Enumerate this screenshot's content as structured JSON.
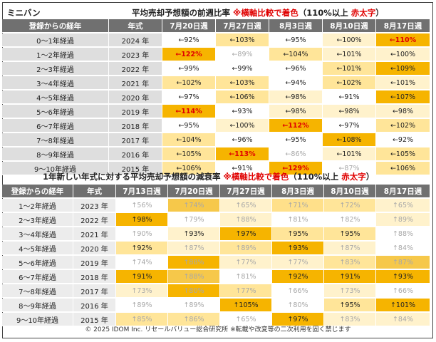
{
  "table1": {
    "corner": "ミニバン",
    "title": "平均売却予想額の前週比率",
    "note_prefix": "※横軸比較で着色",
    "note_mid": "（110%以上",
    "note_red": "赤太字",
    "note_end": "）",
    "headers": [
      "登録からの経年",
      "年式",
      "7月20日週",
      "7月27日週",
      "8月3日週",
      "8月10日週",
      "8月17日週"
    ],
    "rows": [
      {
        "age": "0～1年経過",
        "year": "2024 年",
        "cells": [
          {
            "t": "←92%",
            "bg": "#ffffff",
            "s": "n"
          },
          {
            "t": "←103%",
            "bg": "#ffe599",
            "s": "n"
          },
          {
            "t": "←95%",
            "bg": "#ffffff",
            "s": "n"
          },
          {
            "t": "←100%",
            "bg": "#fff2cc",
            "s": "n"
          },
          {
            "t": "←110%",
            "bg": "#f6b400",
            "s": "r"
          }
        ]
      },
      {
        "age": "1～2年経過",
        "year": "2023 年",
        "cells": [
          {
            "t": "←122%",
            "bg": "#f6b400",
            "s": "r"
          },
          {
            "t": "←89%",
            "bg": "#ffffff",
            "s": "g"
          },
          {
            "t": "←104%",
            "bg": "#ffe599",
            "s": "n"
          },
          {
            "t": "←101%",
            "bg": "#fff2cc",
            "s": "n"
          },
          {
            "t": "←100%",
            "bg": "#fff2cc",
            "s": "n"
          }
        ]
      },
      {
        "age": "2～3年経過",
        "year": "2022 年",
        "cells": [
          {
            "t": "←99%",
            "bg": "#ffffff",
            "s": "n"
          },
          {
            "t": "←99%",
            "bg": "#ffffff",
            "s": "n"
          },
          {
            "t": "←96%",
            "bg": "#ffffff",
            "s": "n"
          },
          {
            "t": "←101%",
            "bg": "#ffe599",
            "s": "n"
          },
          {
            "t": "←109%",
            "bg": "#f6b400",
            "s": "n"
          }
        ]
      },
      {
        "age": "3～4年経過",
        "year": "2021 年",
        "cells": [
          {
            "t": "←102%",
            "bg": "#ffe599",
            "s": "n"
          },
          {
            "t": "←103%",
            "bg": "#ffe599",
            "s": "n"
          },
          {
            "t": "←94%",
            "bg": "#ffffff",
            "s": "n"
          },
          {
            "t": "←102%",
            "bg": "#ffe599",
            "s": "n"
          },
          {
            "t": "←101%",
            "bg": "#fff2cc",
            "s": "n"
          }
        ]
      },
      {
        "age": "4～5年経過",
        "year": "2020 年",
        "cells": [
          {
            "t": "←97%",
            "bg": "#ffffff",
            "s": "n"
          },
          {
            "t": "←106%",
            "bg": "#ffe599",
            "s": "n"
          },
          {
            "t": "←98%",
            "bg": "#fff2cc",
            "s": "n"
          },
          {
            "t": "←91%",
            "bg": "#ffffff",
            "s": "n"
          },
          {
            "t": "←107%",
            "bg": "#f6b400",
            "s": "n"
          }
        ]
      },
      {
        "age": "5～6年経過",
        "year": "2019 年",
        "cells": [
          {
            "t": "←114%",
            "bg": "#f6b400",
            "s": "r"
          },
          {
            "t": "←93%",
            "bg": "#ffffff",
            "s": "n"
          },
          {
            "t": "←98%",
            "bg": "#fff2cc",
            "s": "n"
          },
          {
            "t": "←98%",
            "bg": "#fff2cc",
            "s": "n"
          },
          {
            "t": "←98%",
            "bg": "#fff2cc",
            "s": "n"
          }
        ]
      },
      {
        "age": "6～7年経過",
        "year": "2018 年",
        "cells": [
          {
            "t": "←95%",
            "bg": "#ffffff",
            "s": "n"
          },
          {
            "t": "←100%",
            "bg": "#fff2cc",
            "s": "n"
          },
          {
            "t": "←112%",
            "bg": "#f6b400",
            "s": "r"
          },
          {
            "t": "←97%",
            "bg": "#ffffff",
            "s": "n"
          },
          {
            "t": "←102%",
            "bg": "#ffe599",
            "s": "n"
          }
        ]
      },
      {
        "age": "7～8年経過",
        "year": "2017 年",
        "cells": [
          {
            "t": "←104%",
            "bg": "#ffe599",
            "s": "n"
          },
          {
            "t": "←96%",
            "bg": "#ffffff",
            "s": "n"
          },
          {
            "t": "←95%",
            "bg": "#ffffff",
            "s": "n"
          },
          {
            "t": "←108%",
            "bg": "#f6b400",
            "s": "n"
          },
          {
            "t": "←92%",
            "bg": "#ffffff",
            "s": "n"
          }
        ]
      },
      {
        "age": "8～9年経過",
        "year": "2016 年",
        "cells": [
          {
            "t": "←105%",
            "bg": "#ffe599",
            "s": "n"
          },
          {
            "t": "←113%",
            "bg": "#f6b400",
            "s": "r"
          },
          {
            "t": "←86%",
            "bg": "#ffffff",
            "s": "g"
          },
          {
            "t": "←101%",
            "bg": "#fff2cc",
            "s": "n"
          },
          {
            "t": "←105%",
            "bg": "#ffe599",
            "s": "n"
          }
        ]
      },
      {
        "age": "9～10年経過",
        "year": "2015 年",
        "cells": [
          {
            "t": "←106%",
            "bg": "#ffe599",
            "s": "n"
          },
          {
            "t": "←91%",
            "bg": "#ffffff",
            "s": "n"
          },
          {
            "t": "←129%",
            "bg": "#f6b400",
            "s": "r"
          },
          {
            "t": "←87%",
            "bg": "#ffffff",
            "s": "g"
          },
          {
            "t": "←106%",
            "bg": "#ffe599",
            "s": "n"
          }
        ]
      }
    ]
  },
  "table2": {
    "title": "1年新しい年式に対する平均売却予想額の減衰率",
    "note_prefix": "※横軸比較で着色",
    "note_mid": "（110%以上",
    "note_red": "赤太字",
    "note_end": "）",
    "headers": [
      "登録からの経年",
      "年式",
      "7月13日週",
      "7月20日週",
      "7月27日週",
      "8月3日週",
      "8月10日週",
      "8月17日週"
    ],
    "rows": [
      {
        "age": "1～2年経過",
        "year": "2023 年",
        "cells": [
          {
            "t": "↑56%",
            "bg": "#ffffff",
            "s": "g"
          },
          {
            "t": "↑74%",
            "bg": "#f6c84a",
            "s": "g"
          },
          {
            "t": "↑65%",
            "bg": "#fff2cc",
            "s": "g"
          },
          {
            "t": "↑71%",
            "bg": "#ffe08a",
            "s": "g"
          },
          {
            "t": "↑72%",
            "bg": "#ffe599",
            "s": "g"
          },
          {
            "t": "↑65%",
            "bg": "#fff2cc",
            "s": "g"
          }
        ]
      },
      {
        "age": "2～3年経過",
        "year": "2022 年",
        "cells": [
          {
            "t": "↑98%",
            "bg": "#f6b400",
            "s": "n"
          },
          {
            "t": "↑79%",
            "bg": "#ffffff",
            "s": "g"
          },
          {
            "t": "↑88%",
            "bg": "#fff2cc",
            "s": "g"
          },
          {
            "t": "↑81%",
            "bg": "#ffffff",
            "s": "g"
          },
          {
            "t": "↑82%",
            "bg": "#ffffff",
            "s": "g"
          },
          {
            "t": "↑89%",
            "bg": "#fff2cc",
            "s": "g"
          }
        ]
      },
      {
        "age": "3～4年経過",
        "year": "2021 年",
        "cells": [
          {
            "t": "↑90%",
            "bg": "#ffffff",
            "s": "g"
          },
          {
            "t": "↑93%",
            "bg": "#fff2cc",
            "s": "n"
          },
          {
            "t": "↑97%",
            "bg": "#f6b400",
            "s": "n"
          },
          {
            "t": "↑95%",
            "bg": "#ffe599",
            "s": "n"
          },
          {
            "t": "↑95%",
            "bg": "#ffe599",
            "s": "n"
          },
          {
            "t": "↑88%",
            "bg": "#ffffff",
            "s": "g"
          }
        ]
      },
      {
        "age": "4～5年経過",
        "year": "2020 年",
        "cells": [
          {
            "t": "↑92%",
            "bg": "#ffe599",
            "s": "n"
          },
          {
            "t": "↑87%",
            "bg": "#fff2cc",
            "s": "g"
          },
          {
            "t": "↑89%",
            "bg": "#ffe599",
            "s": "g"
          },
          {
            "t": "↑93%",
            "bg": "#f6b400",
            "s": "n"
          },
          {
            "t": "↑87%",
            "bg": "#fff2cc",
            "s": "g"
          },
          {
            "t": "↑84%",
            "bg": "#ffffff",
            "s": "g"
          }
        ]
      },
      {
        "age": "5～6年経過",
        "year": "2019 年",
        "cells": [
          {
            "t": "↑74%",
            "bg": "#ffffff",
            "s": "g"
          },
          {
            "t": "↑88%",
            "bg": "#f6b400",
            "s": "g"
          },
          {
            "t": "↑77%",
            "bg": "#fff2cc",
            "s": "g"
          },
          {
            "t": "↑77%",
            "bg": "#fff2cc",
            "s": "g"
          },
          {
            "t": "↑83%",
            "bg": "#ffe599",
            "s": "g"
          },
          {
            "t": "↑87%",
            "bg": "#f6c84a",
            "s": "g"
          }
        ]
      },
      {
        "age": "6～7年経過",
        "year": "2018 年",
        "cells": [
          {
            "t": "↑91%",
            "bg": "#f6b400",
            "s": "n"
          },
          {
            "t": "↑88%",
            "bg": "#f6c84a",
            "s": "g"
          },
          {
            "t": "↑81%",
            "bg": "#ffffff",
            "s": "g"
          },
          {
            "t": "↑92%",
            "bg": "#f6b400",
            "s": "n"
          },
          {
            "t": "↑91%",
            "bg": "#f6b400",
            "s": "n"
          },
          {
            "t": "↑93%",
            "bg": "#f6b400",
            "s": "n"
          }
        ]
      },
      {
        "age": "7～8年経過",
        "year": "2017 年",
        "cells": [
          {
            "t": "↑73%",
            "bg": "#fff2cc",
            "s": "g"
          },
          {
            "t": "↑80%",
            "bg": "#f6b400",
            "s": "g"
          },
          {
            "t": "↑77%",
            "bg": "#ffe599",
            "s": "g"
          },
          {
            "t": "↑66%",
            "bg": "#ffffff",
            "s": "g"
          },
          {
            "t": "↑73%",
            "bg": "#fff2cc",
            "s": "g"
          },
          {
            "t": "↑66%",
            "bg": "#ffffff",
            "s": "g"
          }
        ]
      },
      {
        "age": "8～9年経過",
        "year": "2016 年",
        "cells": [
          {
            "t": "↑89%",
            "bg": "#ffffff",
            "s": "g"
          },
          {
            "t": "↑89%",
            "bg": "#ffffff",
            "s": "g"
          },
          {
            "t": "↑105%",
            "bg": "#f6b400",
            "s": "n"
          },
          {
            "t": "↑80%",
            "bg": "#ffffff",
            "s": "g"
          },
          {
            "t": "↑95%",
            "bg": "#ffe599",
            "s": "n"
          },
          {
            "t": "↑101%",
            "bg": "#f6b400",
            "s": "n"
          }
        ]
      },
      {
        "age": "9～10年経過",
        "year": "2015 年",
        "cells": [
          {
            "t": "↑85%",
            "bg": "#ffe599",
            "s": "g"
          },
          {
            "t": "↑86%",
            "bg": "#ffe599",
            "s": "g"
          },
          {
            "t": "↑65%",
            "bg": "#ffffff",
            "s": "g"
          },
          {
            "t": "↑97%",
            "bg": "#f6b400",
            "s": "n"
          },
          {
            "t": "↑83%",
            "bg": "#fff2cc",
            "s": "g"
          },
          {
            "t": "↑84%",
            "bg": "#fff2cc",
            "s": "g"
          }
        ]
      }
    ]
  },
  "footer": "© 2025 IDOM Inc. リセールバリュー総合研究所 ※転載や改変等の二次利用を固く禁じます"
}
